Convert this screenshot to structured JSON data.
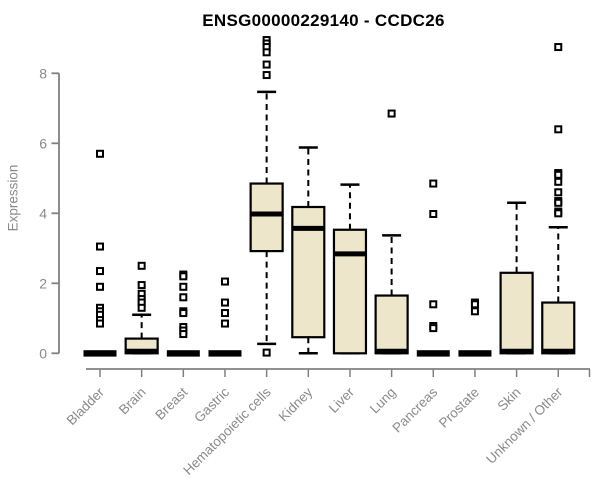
{
  "page": {
    "title": "ENSG00000229140 - CCDC26"
  },
  "chart_data": {
    "type": "boxplot",
    "title": "ENSG00000229140 - CCDC26",
    "ylabel": "Expression",
    "xlabel": "",
    "ylim": [
      0,
      8
    ],
    "yticks": [
      0,
      2,
      4,
      6,
      8
    ],
    "grid": false,
    "legend": "none",
    "categories": [
      "Bladder",
      "Brain",
      "Breast",
      "Gastric",
      "Hematopoietic cells",
      "Kidney",
      "Liver",
      "Lung",
      "Pancreas",
      "Prostate",
      "Skin",
      "Unknown / Other"
    ],
    "boxes": [
      {
        "category": "Bladder",
        "q1": 0,
        "median": 0,
        "q3": 0,
        "whisker_low": 0,
        "whisker_high": 0,
        "outliers": [
          5.7,
          3.05,
          2.35,
          1.9,
          1.3,
          1.2,
          1.1,
          0.95,
          0.85
        ]
      },
      {
        "category": "Brain",
        "q1": 0,
        "median": 0,
        "q3": 0.42,
        "whisker_low": 0,
        "whisker_high": 1.1,
        "outliers": [
          2.5,
          1.95,
          1.7,
          1.55,
          1.45,
          1.3
        ]
      },
      {
        "category": "Breast",
        "q1": 0,
        "median": 0,
        "q3": 0,
        "whisker_low": 0,
        "whisker_high": 0,
        "outliers": [
          2.25,
          2.2,
          1.9,
          1.6,
          1.2,
          1.15,
          0.75,
          0.65,
          0.55
        ]
      },
      {
        "category": "Gastric",
        "q1": 0,
        "median": 0,
        "q3": 0,
        "whisker_low": 0,
        "whisker_high": 0,
        "outliers": [
          2.05,
          1.45,
          1.15,
          0.85
        ]
      },
      {
        "category": "Hematopoietic cells",
        "q1": 2.92,
        "median": 3.98,
        "q3": 4.85,
        "whisker_low": 0.27,
        "whisker_high": 7.47,
        "outliers": [
          8.95,
          8.85,
          8.75,
          8.6,
          8.25,
          7.95,
          0.02
        ]
      },
      {
        "category": "Kidney",
        "q1": 0.46,
        "median": 3.57,
        "q3": 4.18,
        "whisker_low": 0,
        "whisker_high": 5.88,
        "outliers": []
      },
      {
        "category": "Liver",
        "q1": 0,
        "median": 2.84,
        "q3": 3.53,
        "whisker_low": 0,
        "whisker_high": 4.82,
        "outliers": []
      },
      {
        "category": "Lung",
        "q1": 0,
        "median": 0,
        "q3": 1.65,
        "whisker_low": 0,
        "whisker_high": 3.37,
        "outliers": [
          6.85
        ]
      },
      {
        "category": "Pancreas",
        "q1": 0,
        "median": 0,
        "q3": 0,
        "whisker_low": 0,
        "whisker_high": 0,
        "outliers": [
          4.85,
          3.98,
          1.4,
          0.78,
          0.72
        ]
      },
      {
        "category": "Prostate",
        "q1": 0,
        "median": 0,
        "q3": 0,
        "whisker_low": 0,
        "whisker_high": 0,
        "outliers": [
          1.45,
          1.4,
          1.2
        ]
      },
      {
        "category": "Skin",
        "q1": 0,
        "median": 0,
        "q3": 2.3,
        "whisker_low": 0,
        "whisker_high": 4.3,
        "outliers": []
      },
      {
        "category": "Unknown / Other",
        "q1": 0,
        "median": 0,
        "q3": 1.45,
        "whisker_low": 0,
        "whisker_high": 3.6,
        "outliers": [
          8.75,
          6.4,
          5.15,
          5.1,
          4.9,
          4.6,
          4.35,
          4.3,
          4.05,
          4.0
        ]
      }
    ],
    "style": {
      "box_fill": "#EDE6CA",
      "box_stroke": "#000000",
      "median_color": "#000000",
      "whisker_color": "#000000",
      "outlier_fill": "#ffffff",
      "outlier_stroke": "#000000",
      "axis_color": "#808080",
      "label_color": "#8a8a8a",
      "title_color": "#000000"
    }
  }
}
